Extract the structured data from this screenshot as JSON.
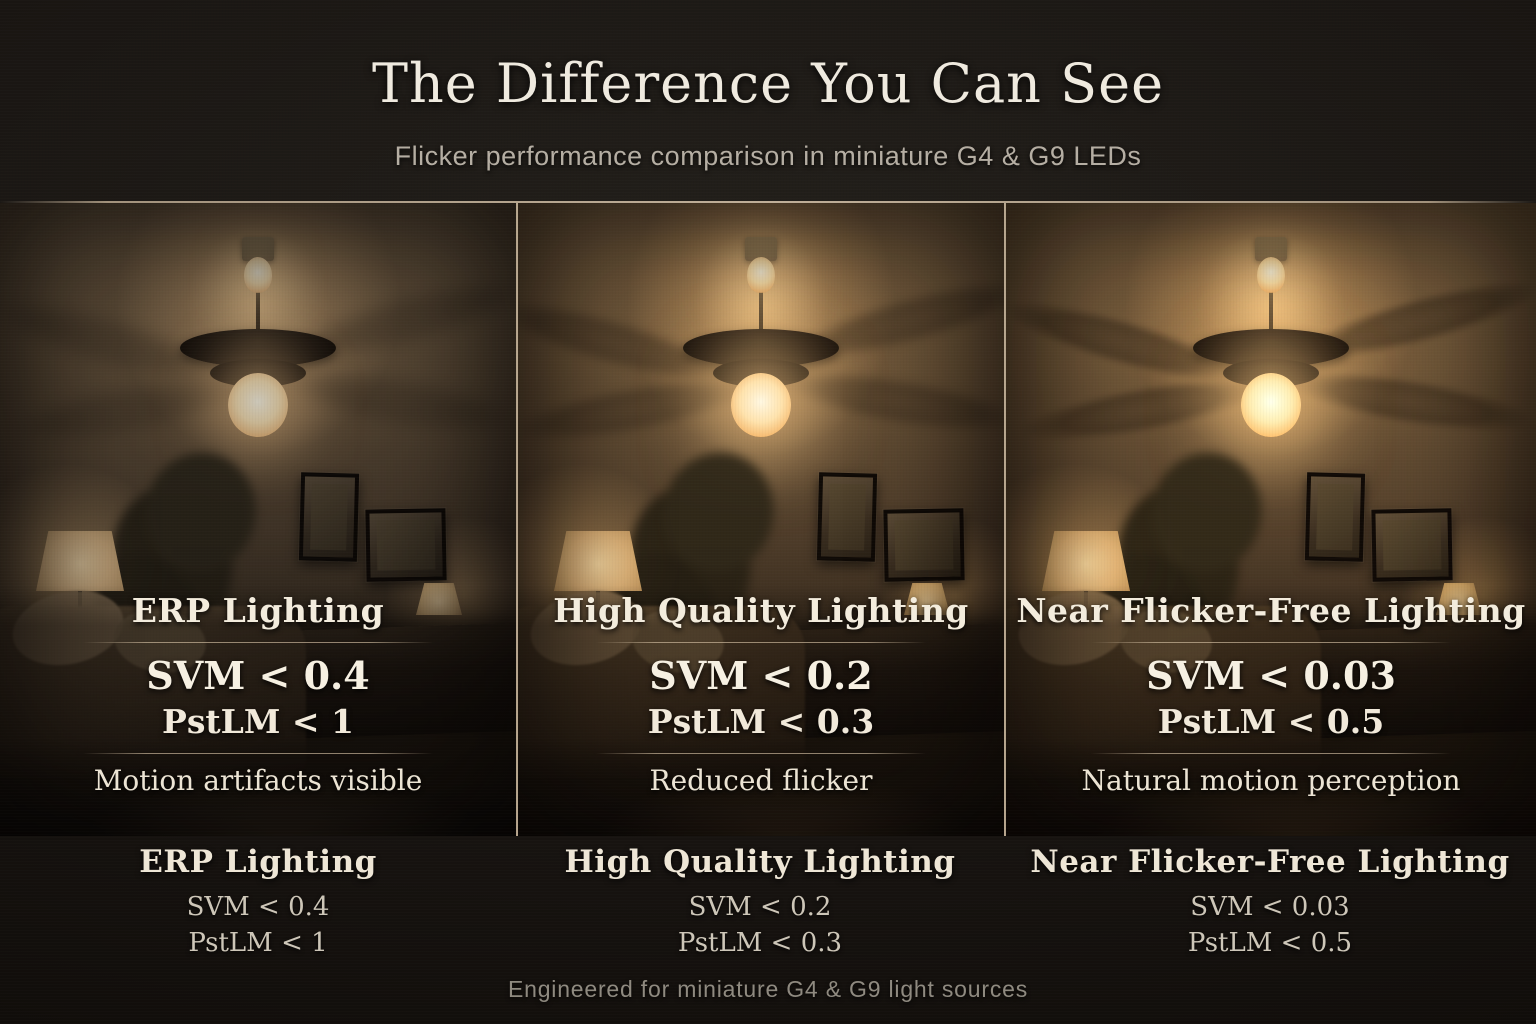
{
  "header": {
    "title": "The Difference You Can See",
    "subtitle": "Flicker performance comparison in miniature G4 & G9 LEDs"
  },
  "panels": [
    {
      "heading": "ERP Lighting",
      "svm": "SVM < 0.4",
      "pstlm": "PstLM < 1",
      "caption": "Motion artifacts visible"
    },
    {
      "heading": "High Quality Lighting",
      "svm": "SVM < 0.2",
      "pstlm": "PstLM < 0.3",
      "caption": "Reduced flicker"
    },
    {
      "heading": "Near Flicker-Free Lighting",
      "svm": "SVM < 0.03",
      "pstlm": "PstLM < 0.5",
      "caption": "Natural motion perception"
    }
  ],
  "bottom_labels": [
    {
      "heading": "ERP Lighting",
      "svm": "SVM < 0.4",
      "pstlm": "PstLM < 1"
    },
    {
      "heading": "High Quality Lighting",
      "svm": "SVM < 0.2",
      "pstlm": "PstLM < 0.3"
    },
    {
      "heading": "Near Flicker-Free Lighting",
      "svm": "SVM < 0.03",
      "pstlm": "PstLM < 0.5"
    }
  ],
  "footer": {
    "tagline": "Engineered for miniature G4 & G9 light sources"
  },
  "colors": {
    "background": "#14100d",
    "text_cream": "#efeadf",
    "text_muted": "#b5aea3",
    "divider": "#d0be9f",
    "warm_glow": "#ffd38f"
  }
}
